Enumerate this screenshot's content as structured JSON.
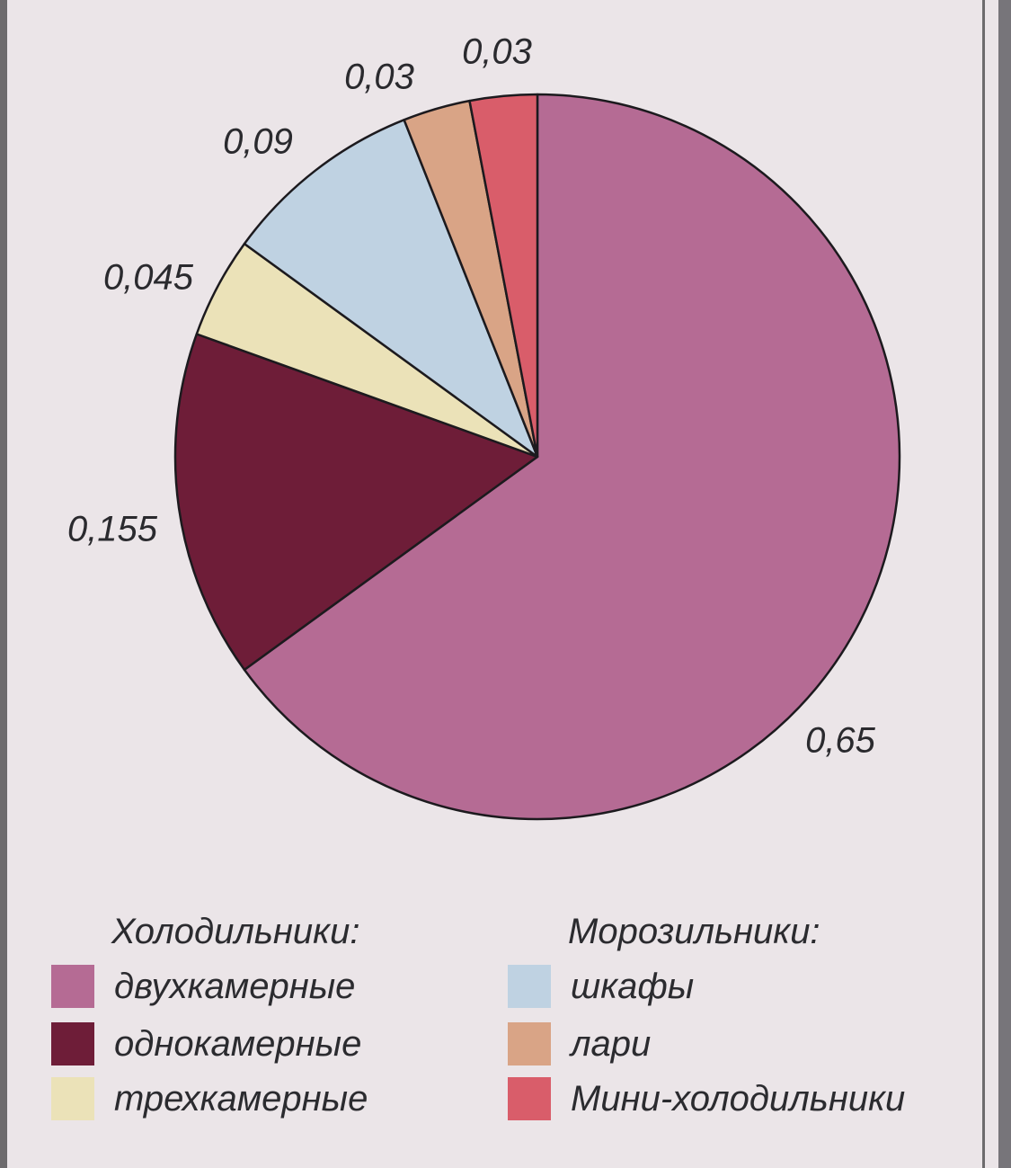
{
  "chart_data": {
    "type": "pie",
    "slices": [
      {
        "name": "двухкамерные",
        "value": 0.65,
        "label": "0,65",
        "color": "#b56b94"
      },
      {
        "name": "однокамерные",
        "value": 0.155,
        "label": "0,155",
        "color": "#6e1d38"
      },
      {
        "name": "трехкамерные",
        "value": 0.045,
        "label": "0,045",
        "color": "#ebe2b8"
      },
      {
        "name": "шкафы",
        "value": 0.09,
        "label": "0,09",
        "color": "#bfd2e2"
      },
      {
        "name": "лари",
        "value": 0.03,
        "label": "0,03",
        "color": "#d9a486"
      },
      {
        "name": "Мини-холодильники",
        "value": 0.03,
        "label": "0,03",
        "color": "#d95d6a"
      }
    ]
  },
  "legend": {
    "group1_title": "Холодильники:",
    "group2_title": "Морозильники:",
    "group1": [
      {
        "label": "двухкамерные",
        "color": "#b56b94"
      },
      {
        "label": "однокамерные",
        "color": "#6e1d38"
      },
      {
        "label": "трехкамерные",
        "color": "#ebe2b8"
      }
    ],
    "group2": [
      {
        "label": "шкафы",
        "color": "#bfd2e2"
      },
      {
        "label": "лари",
        "color": "#d9a486"
      },
      {
        "label": "Мини-холодильники",
        "color": "#d95d6a"
      }
    ]
  }
}
